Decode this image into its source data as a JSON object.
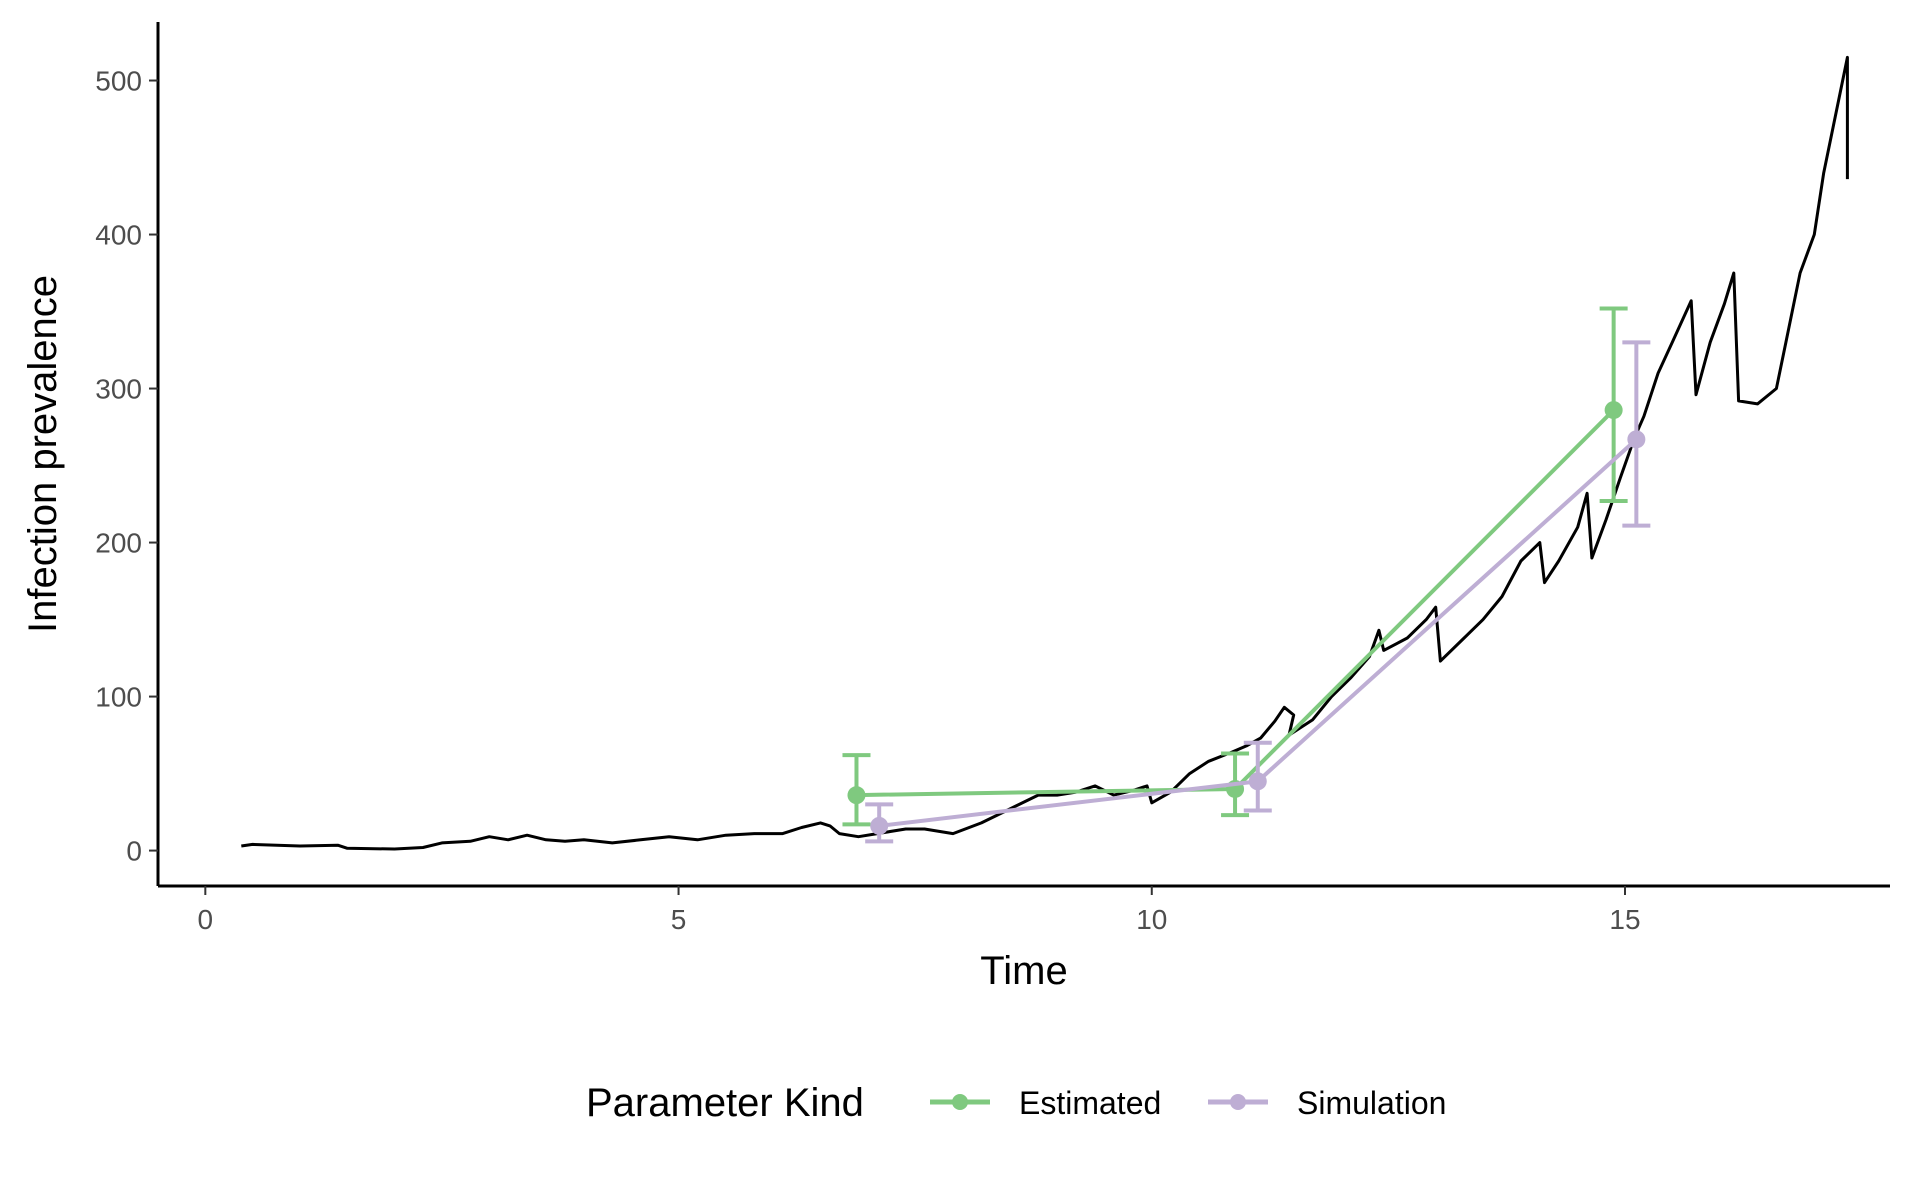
{
  "chart_data": {
    "type": "line",
    "title": "",
    "xlabel": "Time",
    "ylabel": "Infection prevalence",
    "xlim": [
      -0.5,
      17.8
    ],
    "ylim": [
      -23,
      538
    ],
    "x_ticks": [
      0,
      5,
      10,
      15
    ],
    "y_ticks": [
      0,
      100,
      200,
      300,
      400,
      500
    ],
    "grid": false,
    "legend": {
      "title": "Parameter Kind",
      "position": "bottom",
      "entries": [
        {
          "label": "Estimated",
          "color": "#7fc97f"
        },
        {
          "label": "Simulation",
          "color": "#beaed4"
        }
      ]
    },
    "trajectory": {
      "color": "#000000",
      "points": [
        [
          0.38,
          3
        ],
        [
          0.5,
          4
        ],
        [
          1.0,
          3
        ],
        [
          1.4,
          3.5
        ],
        [
          1.5,
          1.5
        ],
        [
          2.0,
          1
        ],
        [
          2.3,
          2
        ],
        [
          2.5,
          5
        ],
        [
          2.8,
          6
        ],
        [
          3.0,
          9
        ],
        [
          3.2,
          7
        ],
        [
          3.4,
          10
        ],
        [
          3.6,
          7
        ],
        [
          3.8,
          6
        ],
        [
          4.0,
          7
        ],
        [
          4.3,
          5
        ],
        [
          4.6,
          7
        ],
        [
          4.9,
          9
        ],
        [
          5.2,
          7
        ],
        [
          5.5,
          10
        ],
        [
          5.8,
          11
        ],
        [
          6.1,
          11
        ],
        [
          6.3,
          15
        ],
        [
          6.5,
          18
        ],
        [
          6.6,
          16
        ],
        [
          6.7,
          11
        ],
        [
          6.9,
          9
        ],
        [
          7.1,
          11
        ],
        [
          7.4,
          14
        ],
        [
          7.6,
          14
        ],
        [
          7.9,
          11
        ],
        [
          8.2,
          18
        ],
        [
          8.5,
          27
        ],
        [
          8.8,
          36
        ],
        [
          9.0,
          36
        ],
        [
          9.2,
          38
        ],
        [
          9.4,
          42
        ],
        [
          9.6,
          36
        ],
        [
          9.8,
          39
        ],
        [
          9.95,
          42
        ],
        [
          10.0,
          31
        ],
        [
          10.2,
          38
        ],
        [
          10.4,
          50
        ],
        [
          10.6,
          58
        ],
        [
          10.85,
          64
        ],
        [
          11.0,
          68
        ],
        [
          11.15,
          73
        ],
        [
          11.3,
          84
        ],
        [
          11.4,
          93
        ],
        [
          11.5,
          88
        ],
        [
          11.45,
          75
        ],
        [
          11.7,
          85
        ],
        [
          11.9,
          100
        ],
        [
          12.1,
          112
        ],
        [
          12.3,
          126
        ],
        [
          12.4,
          143
        ],
        [
          12.45,
          130
        ],
        [
          12.7,
          138
        ],
        [
          12.9,
          150
        ],
        [
          13.0,
          158
        ],
        [
          13.05,
          123
        ],
        [
          13.3,
          138
        ],
        [
          13.5,
          150
        ],
        [
          13.7,
          165
        ],
        [
          13.9,
          188
        ],
        [
          14.1,
          200
        ],
        [
          14.15,
          174
        ],
        [
          14.3,
          188
        ],
        [
          14.5,
          210
        ],
        [
          14.6,
          232
        ],
        [
          14.65,
          190
        ],
        [
          14.8,
          215
        ],
        [
          14.95,
          242
        ],
        [
          15.1,
          268
        ],
        [
          15.2,
          282
        ],
        [
          15.35,
          310
        ],
        [
          15.5,
          330
        ],
        [
          15.7,
          357
        ],
        [
          15.75,
          296
        ],
        [
          15.9,
          330
        ],
        [
          16.05,
          355
        ],
        [
          16.15,
          375
        ],
        [
          16.2,
          292
        ],
        [
          16.4,
          290
        ],
        [
          16.6,
          300
        ],
        [
          16.7,
          330
        ],
        [
          16.85,
          375
        ],
        [
          17.0,
          400
        ],
        [
          17.1,
          440
        ],
        [
          17.2,
          470
        ],
        [
          17.35,
          515
        ],
        [
          17.35,
          436
        ]
      ]
    },
    "series": [
      {
        "name": "Estimated",
        "color": "#7fc97f",
        "x": [
          6.88,
          10.88,
          14.88
        ],
        "y": [
          36,
          40,
          286
        ],
        "lower": [
          17,
          23,
          227
        ],
        "upper": [
          62,
          63,
          352
        ]
      },
      {
        "name": "Simulation",
        "color": "#beaed4",
        "x": [
          7.12,
          11.12,
          15.12
        ],
        "y": [
          16,
          45,
          267
        ],
        "lower": [
          6,
          26,
          211
        ],
        "upper": [
          30,
          70,
          330
        ]
      }
    ]
  }
}
